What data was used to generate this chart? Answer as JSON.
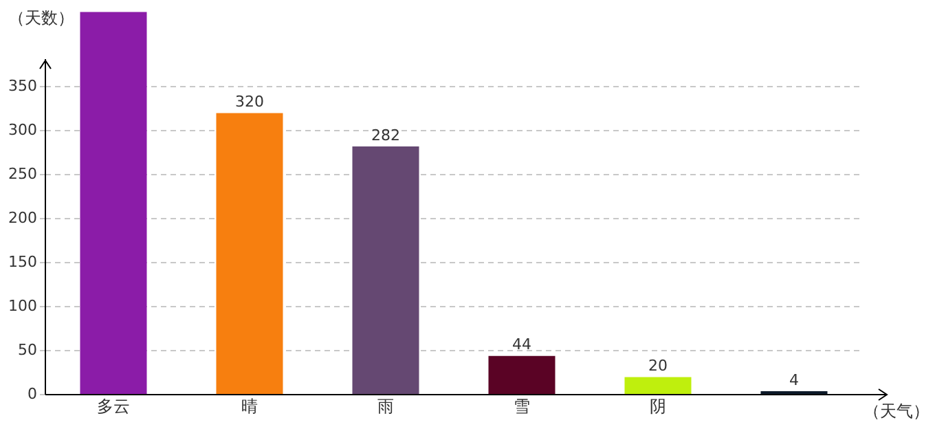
{
  "chart_data": {
    "type": "bar",
    "xlabel": "（天气）",
    "ylabel": "（天数）",
    "categories": [
      "多云",
      "晴",
      "雨",
      "雪",
      "阴",
      null
    ],
    "values": [
      435,
      320,
      282,
      44,
      20,
      4
    ],
    "colors": [
      "#8b1ca8",
      "#f77f0f",
      "#654872",
      "#5a0325",
      "#bfef0d",
      "#0d1a2a"
    ],
    "value_labels": [
      null,
      "320",
      "282",
      "44",
      "20",
      "4"
    ],
    "ylim": [
      0,
      435
    ],
    "yticks": [
      0,
      50,
      100,
      150,
      200,
      250,
      300,
      350
    ],
    "grid": "y",
    "legend": false
  }
}
